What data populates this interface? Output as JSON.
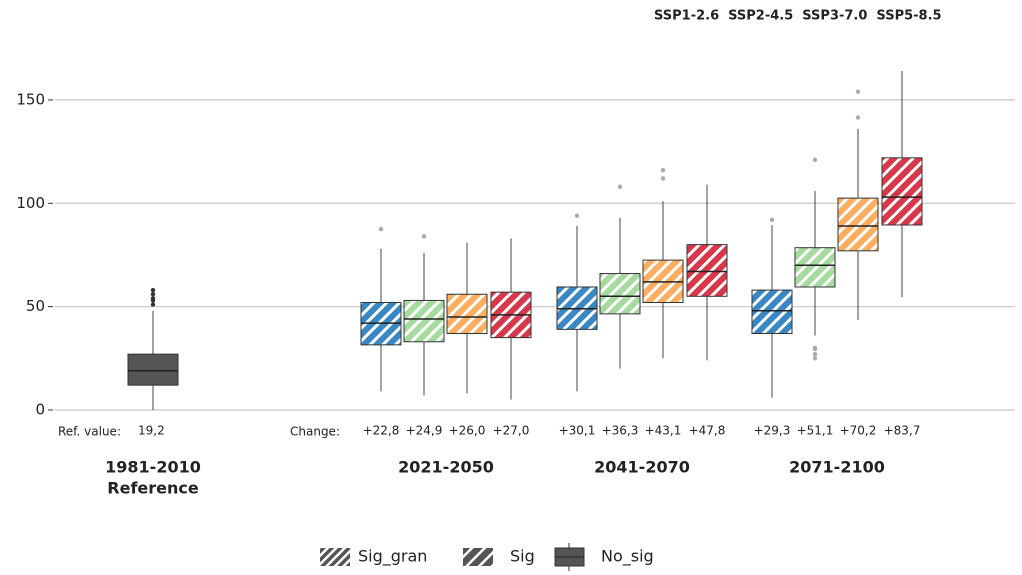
{
  "chart_data": {
    "type": "box",
    "ylim": [
      -5,
      170
    ],
    "yticks": [
      0,
      50,
      100,
      150
    ],
    "grid": true,
    "legend_position": "top-right",
    "categories": [
      "1981-2010",
      "2021-2050",
      "2041-2070",
      "2071-2100"
    ],
    "reference": {
      "subtitle": "Reference",
      "color": "#555555",
      "box": {
        "whislo": 0,
        "q1": 12,
        "med": 19,
        "q3": 27,
        "whishi": 48,
        "fliers": [
          51,
          53,
          54,
          56,
          58
        ]
      },
      "label": "Ref. value:",
      "value": 19.2,
      "value_label": "19,2"
    },
    "change_label": "Change:",
    "series": [
      {
        "name": "SSP1-2.6",
        "color": "#3a87c4",
        "boxes": [
          {
            "whislo": 9,
            "q1": 31.5,
            "med": 42,
            "q3": 52,
            "whishi": 78,
            "fliers": [
              87.5
            ]
          },
          {
            "whislo": 9,
            "q1": 39,
            "med": 49,
            "q3": 59.5,
            "whishi": 89,
            "fliers": [
              94
            ]
          },
          {
            "whislo": 6,
            "q1": 37,
            "med": 48,
            "q3": 58,
            "whishi": 89.5,
            "fliers": [
              92
            ]
          }
        ],
        "changes": [
          22.8,
          30.1,
          29.3
        ],
        "change_labels": [
          "+22,8",
          "+30,1",
          "+29,3"
        ]
      },
      {
        "name": "SSP2-4.5",
        "color": "#a6dba0",
        "boxes": [
          {
            "whislo": 7,
            "q1": 33,
            "med": 44,
            "q3": 53,
            "whishi": 76,
            "fliers": [
              84
            ]
          },
          {
            "whislo": 20,
            "q1": 46.5,
            "med": 55,
            "q3": 66,
            "whishi": 93,
            "fliers": [
              108
            ]
          },
          {
            "whislo": 36,
            "q1": 59.5,
            "med": 70,
            "q3": 78.5,
            "whishi": 106,
            "fliers": [
              121,
              30,
              29.5,
              27,
              25
            ]
          }
        ],
        "changes": [
          24.9,
          36.3,
          51.1
        ],
        "change_labels": [
          "+24,9",
          "+36,3",
          "+51,1"
        ]
      },
      {
        "name": "SSP3-7.0",
        "color": "#fdae61",
        "boxes": [
          {
            "whislo": 8,
            "q1": 37,
            "med": 45,
            "q3": 56,
            "whishi": 81,
            "fliers": []
          },
          {
            "whislo": 25,
            "q1": 52,
            "med": 62,
            "q3": 72.5,
            "whishi": 101,
            "fliers": [
              116,
              112
            ]
          },
          {
            "whislo": 43.5,
            "q1": 77,
            "med": 89,
            "q3": 102.5,
            "whishi": 136,
            "fliers": [
              141.5,
              154
            ]
          }
        ],
        "changes": [
          26.0,
          43.1,
          70.2
        ],
        "change_labels": [
          "+26,0",
          "+43,1",
          "+70,2"
        ]
      },
      {
        "name": "SSP5-8.5",
        "color": "#d7384a",
        "boxes": [
          {
            "whislo": 5,
            "q1": 35,
            "med": 46,
            "q3": 57,
            "whishi": 83,
            "fliers": []
          },
          {
            "whislo": 24,
            "q1": 55,
            "med": 67,
            "q3": 80,
            "whishi": 109,
            "fliers": []
          },
          {
            "whislo": 54.5,
            "q1": 89.5,
            "med": 103,
            "q3": 122,
            "whishi": 164,
            "fliers": []
          }
        ],
        "changes": [
          27.0,
          47.8,
          83.7
        ],
        "change_labels": [
          "+27,0",
          "+47,8",
          "+83,7"
        ]
      }
    ],
    "legend_labels": [
      "Sig_gran",
      "Sig",
      "No_sig"
    ]
  }
}
